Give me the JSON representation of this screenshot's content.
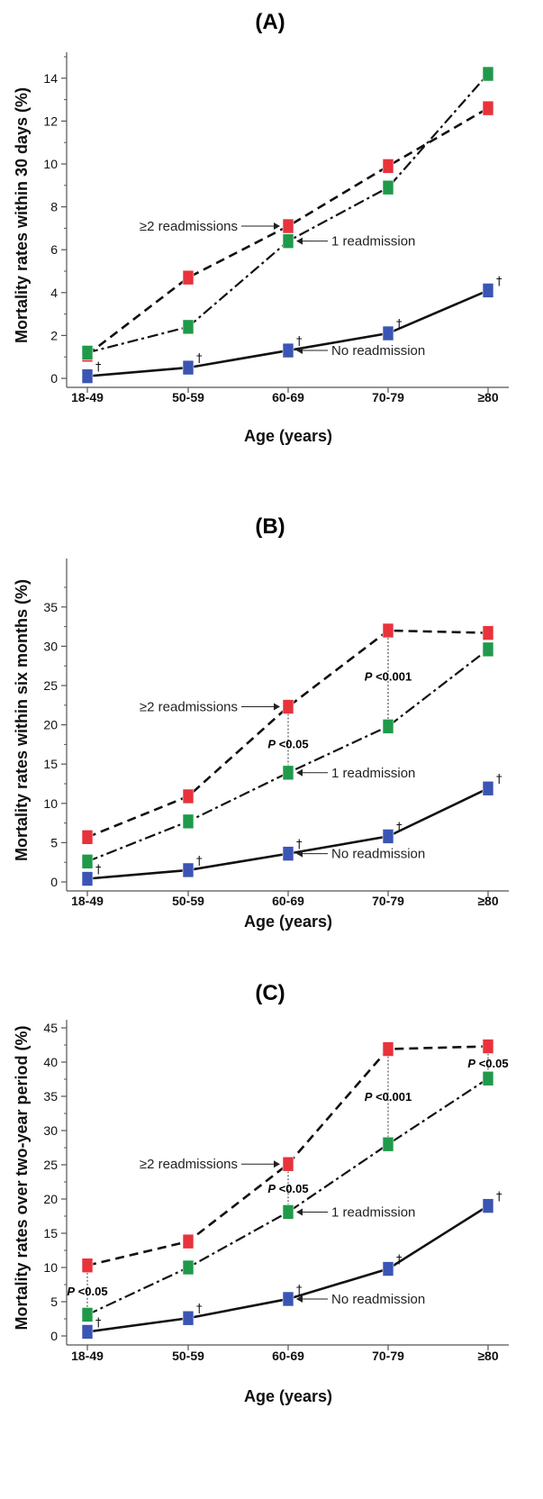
{
  "colors": {
    "two_plus_readmissions": "#e8323c",
    "one_readmission": "#1f9a4a",
    "no_readmission": "#3a55b4"
  },
  "chart_data": [
    {
      "type": "line",
      "title": "(A)",
      "xlabel": "Age (years)",
      "ylabel": "Mortality rates within 30 days (%)",
      "categories": [
        "18-49",
        "50-59",
        "60-69",
        "70-79",
        "≥80"
      ],
      "ylim": [
        0,
        15
      ],
      "yticks": [
        0,
        2,
        4,
        6,
        8,
        10,
        12,
        14
      ],
      "grid": false,
      "series": [
        {
          "name": "≥2 readmissions",
          "line_style": "dashed",
          "values": [
            1.1,
            4.7,
            7.1,
            9.9,
            12.6
          ]
        },
        {
          "name": "1 readmission",
          "line_style": "dash-dot",
          "values": [
            1.2,
            2.4,
            6.4,
            8.9,
            14.2
          ]
        },
        {
          "name": "No readmission",
          "line_style": "solid",
          "values": [
            0.1,
            0.5,
            1.3,
            2.1,
            4.1
          ]
        }
      ],
      "annotations": [
        {
          "text": "≥2 readmissions",
          "series": 0,
          "category": "60-69"
        },
        {
          "text": "1 readmission",
          "series": 1,
          "category": "60-69"
        },
        {
          "text": "No readmission",
          "series": 2,
          "category": "60-69"
        }
      ],
      "dagger_marks": [
        {
          "text": "†",
          "series": 2,
          "category": "18-49"
        },
        {
          "text": "†",
          "series": 2,
          "category": "50-59"
        },
        {
          "text": "†",
          "series": 2,
          "category": "60-69"
        },
        {
          "text": "†",
          "series": 2,
          "category": "70-79"
        },
        {
          "text": "†",
          "series": 2,
          "category": "≥80"
        }
      ],
      "p_values": []
    },
    {
      "type": "line",
      "title": "(B)",
      "xlabel": "Age (years)",
      "ylabel": "Mortality rates within six months (%)",
      "categories": [
        "18-49",
        "50-59",
        "60-69",
        "70-79",
        "≥80"
      ],
      "ylim": [
        0,
        36
      ],
      "yticks": [
        0,
        5,
        10,
        15,
        20,
        25,
        30,
        35
      ],
      "grid": false,
      "series": [
        {
          "name": "≥2 readmissions",
          "line_style": "dashed",
          "values": [
            5.7,
            10.9,
            22.3,
            32.0,
            31.7
          ]
        },
        {
          "name": "1 readmission",
          "line_style": "dash-dot",
          "values": [
            2.6,
            7.7,
            13.9,
            19.8,
            29.6
          ]
        },
        {
          "name": "No readmission",
          "line_style": "solid",
          "values": [
            0.4,
            1.5,
            3.6,
            5.8,
            11.9
          ]
        }
      ],
      "annotations": [
        {
          "text": "≥2 readmissions",
          "series": 0,
          "category": "60-69"
        },
        {
          "text": "1 readmission",
          "series": 1,
          "category": "60-69"
        },
        {
          "text": "No readmission",
          "series": 2,
          "category": "60-69"
        }
      ],
      "dagger_marks": [
        {
          "text": "†",
          "series": 2,
          "category": "18-49"
        },
        {
          "text": "†",
          "series": 2,
          "category": "50-59"
        },
        {
          "text": "†",
          "series": 2,
          "category": "60-69"
        },
        {
          "text": "†",
          "series": 2,
          "category": "70-79"
        },
        {
          "text": "†",
          "series": 2,
          "category": "≥80"
        }
      ],
      "p_values": [
        {
          "p": "P",
          "rest": " <0.05",
          "category": "60-69",
          "y": 17.6
        },
        {
          "p": "P",
          "rest": " <0.001",
          "category": "70-79",
          "y": 26.2
        }
      ]
    },
    {
      "type": "line",
      "title": "(C)",
      "xlabel": "Age (years)",
      "ylabel": "Mortality rates over two-year period (%)",
      "categories": [
        "18-49",
        "50-59",
        "60-69",
        "70-79",
        "≥80"
      ],
      "ylim": [
        0,
        46
      ],
      "yticks": [
        0,
        5,
        10,
        15,
        20,
        25,
        30,
        35,
        40,
        45
      ],
      "grid": false,
      "series": [
        {
          "name": "≥2 readmissions",
          "line_style": "dashed",
          "values": [
            10.3,
            13.8,
            25.1,
            41.9,
            42.3
          ]
        },
        {
          "name": "1 readmission",
          "line_style": "dash-dot",
          "values": [
            3.1,
            10.0,
            18.1,
            28.0,
            37.6
          ]
        },
        {
          "name": "No readmission",
          "line_style": "solid",
          "values": [
            0.6,
            2.6,
            5.4,
            9.8,
            19.0
          ]
        }
      ],
      "annotations": [
        {
          "text": "≥2 readmissions",
          "series": 0,
          "category": "60-69"
        },
        {
          "text": "1 readmission",
          "series": 1,
          "category": "60-69"
        },
        {
          "text": "No readmission",
          "series": 2,
          "category": "60-69"
        }
      ],
      "dagger_marks": [
        {
          "text": "†",
          "series": 2,
          "category": "18-49"
        },
        {
          "text": "†",
          "series": 2,
          "category": "50-59"
        },
        {
          "text": "†",
          "series": 2,
          "category": "60-69"
        },
        {
          "text": "†",
          "series": 2,
          "category": "70-79"
        },
        {
          "text": "†",
          "series": 2,
          "category": "≥80"
        }
      ],
      "p_values": [
        {
          "p": "P",
          "rest": " <0.05",
          "category": "18-49",
          "y": 6.6
        },
        {
          "p": "P",
          "rest": " <0.05",
          "category": "60-69",
          "y": 21.6
        },
        {
          "p": "P",
          "rest": " <0.001",
          "category": "70-79",
          "y": 35.0
        },
        {
          "p": "P",
          "rest": " <0.05",
          "category": "≥80",
          "y": 39.9
        }
      ]
    }
  ]
}
